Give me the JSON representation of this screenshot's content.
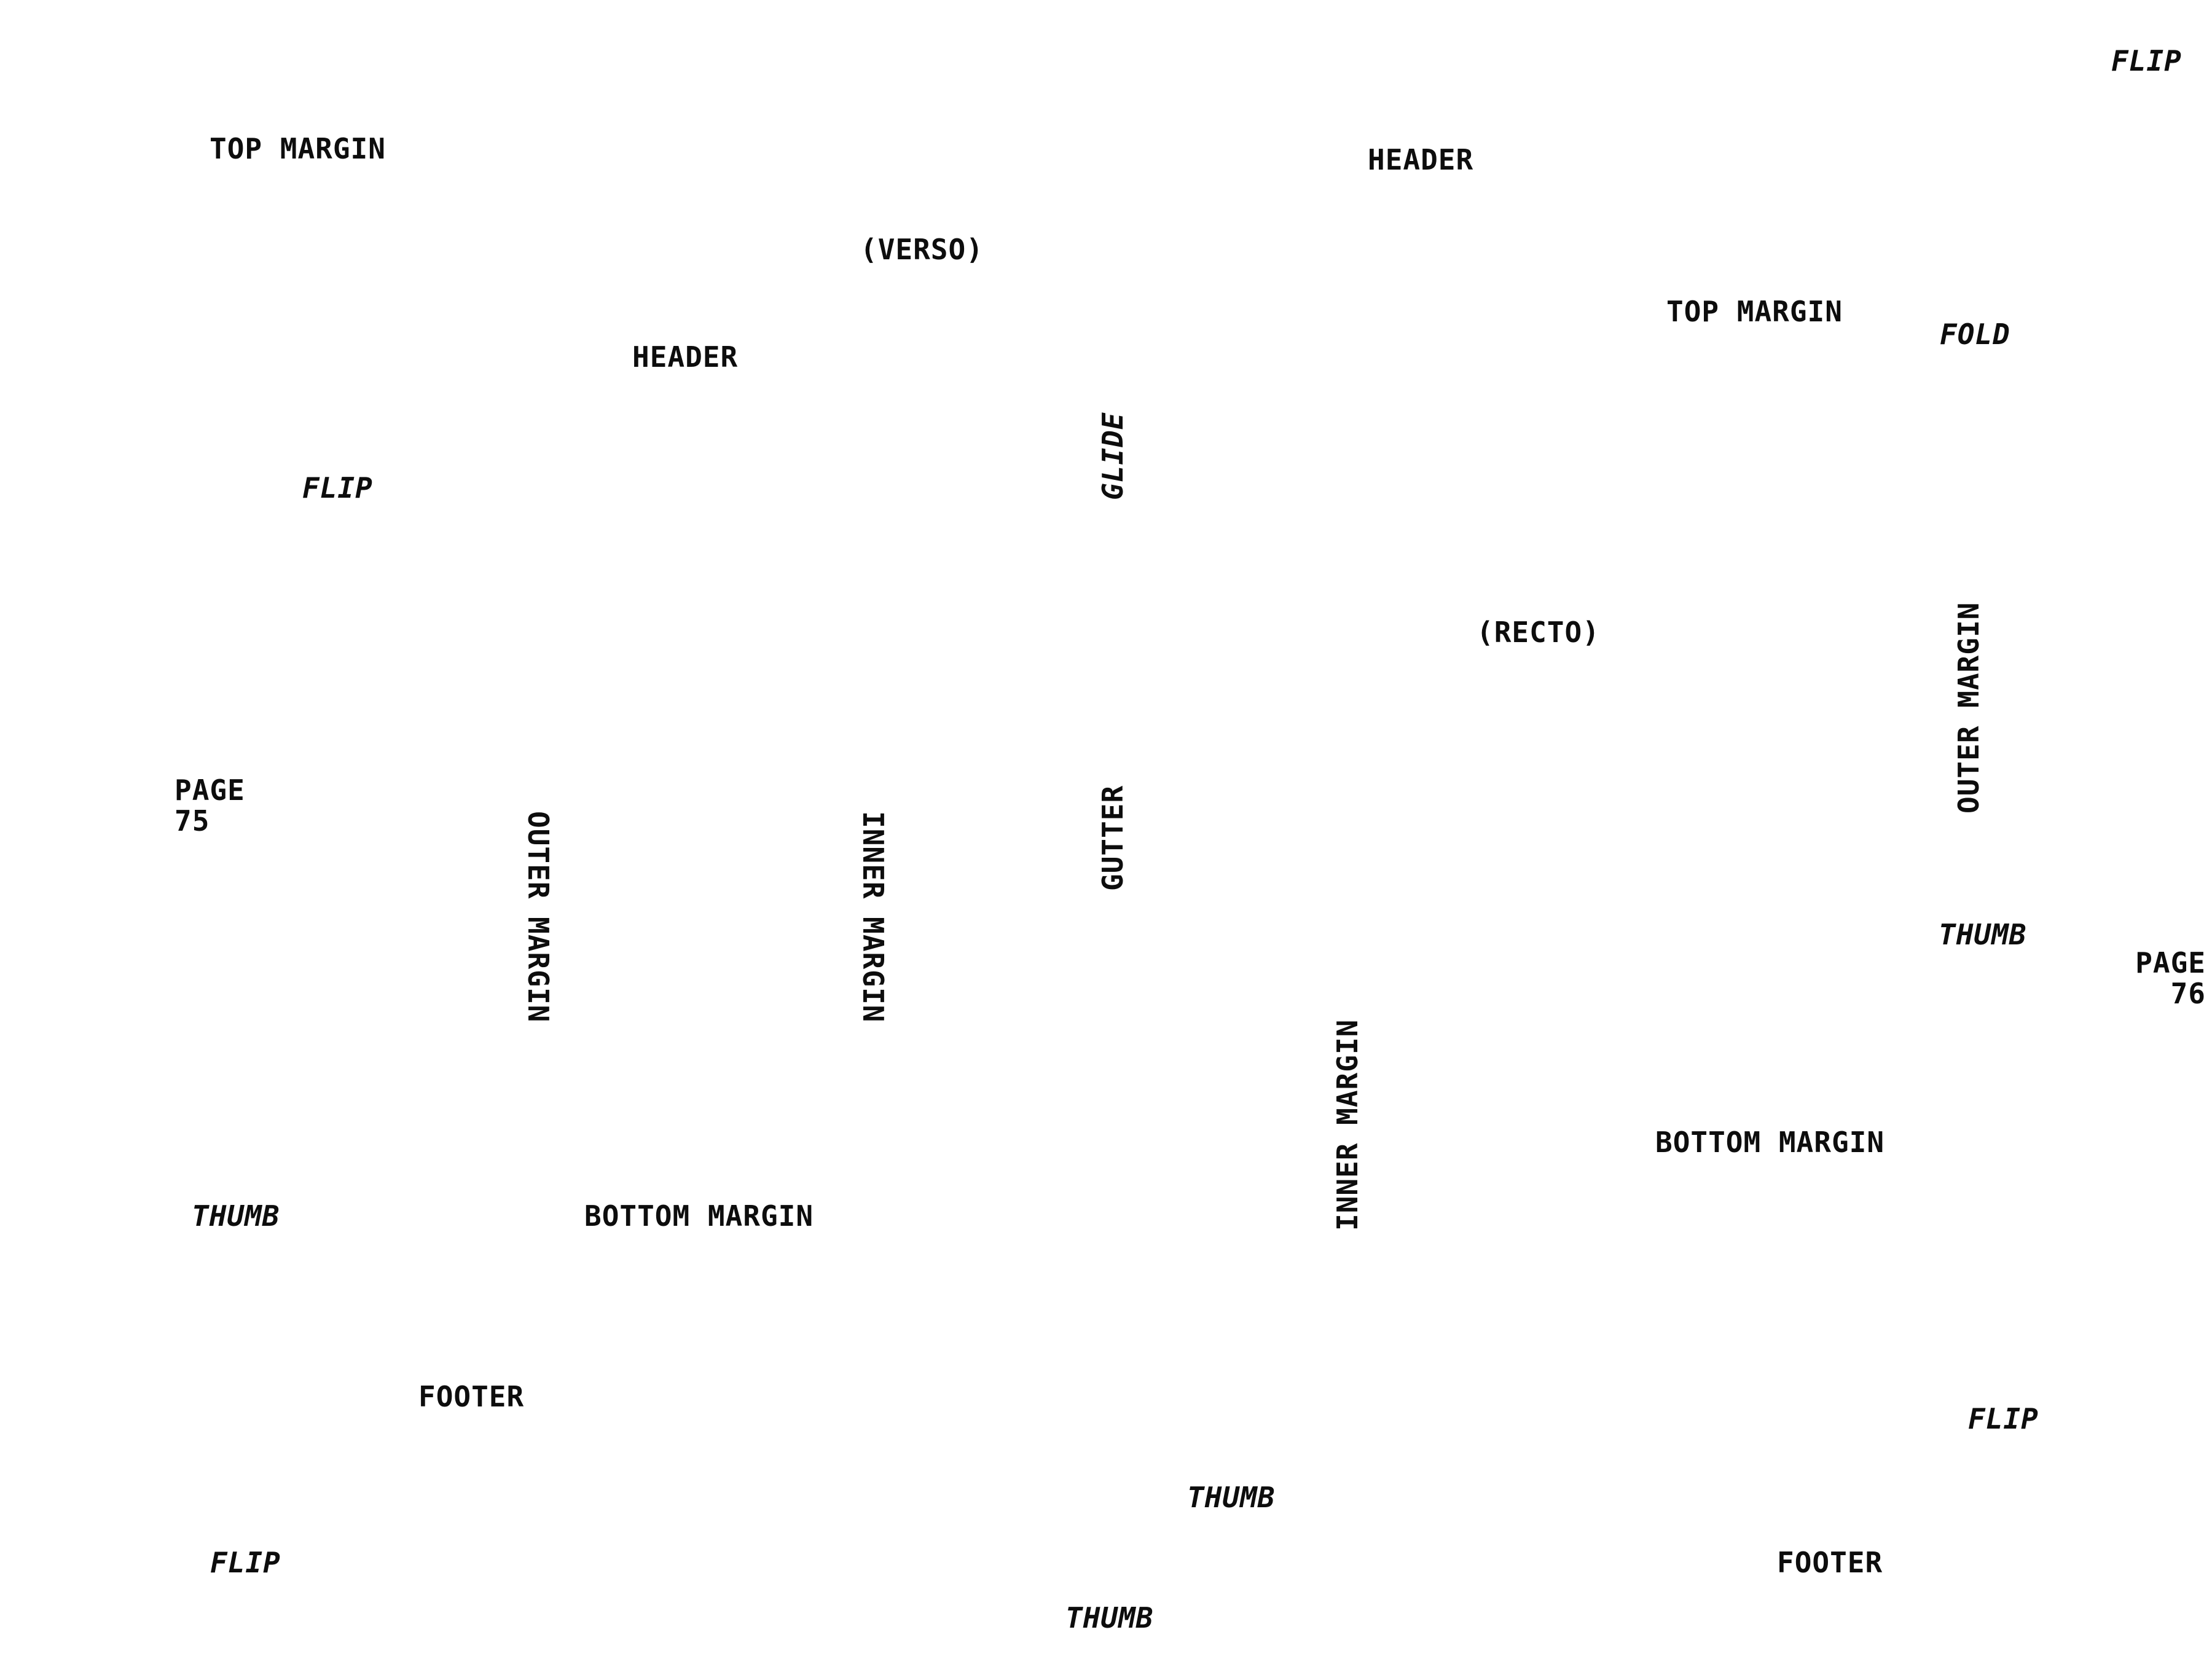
{
  "labels": {
    "flip_top_right": "FLIP",
    "top_margin_left": "TOP MARGIN",
    "header_right": "HEADER",
    "verso": "(VERSO)",
    "top_margin_right": "TOP MARGIN",
    "fold": "FOLD",
    "header_left": "HEADER",
    "glide": "GLIDE",
    "flip_left": "FLIP",
    "recto": "(RECTO)",
    "outer_margin_right": "OUTER MARGIN",
    "page_left_word": "PAGE",
    "page_left_number": "75",
    "outer_margin_left": "OUTER MARGIN",
    "inner_margin_left": "INNER MARGIN",
    "gutter": "GUTTER",
    "thumb_right": "THUMB",
    "page_right_word": "PAGE",
    "page_right_number": "76",
    "inner_margin_right": "INNER MARGIN",
    "bottom_margin_right": "BOTTOM MARGIN",
    "thumb_left": "THUMB",
    "bottom_margin_left": "BOTTOM MARGIN",
    "footer_left": "FOOTER",
    "flip_bottom_right": "FLIP",
    "thumb_center": "THUMB",
    "flip_bottom_left": "FLIP",
    "footer_right": "FOOTER",
    "thumb_bottom": "THUMB"
  },
  "colors": {
    "text": "#0d0d0d",
    "background": "#ffffff"
  }
}
